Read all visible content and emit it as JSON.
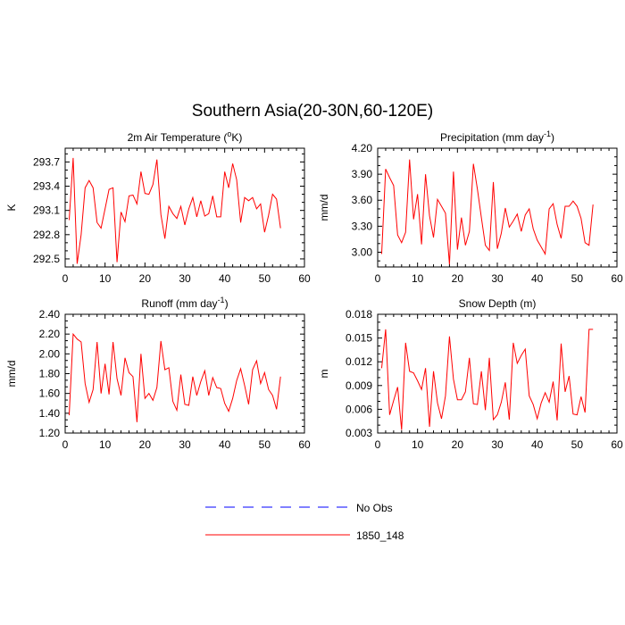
{
  "figure": {
    "title": "Southern Asia(20-30N,60-120E)",
    "line_color": "#ff0000",
    "obs_color": "#0000ff",
    "axis_color": "#000000"
  },
  "legend": {
    "entries": [
      {
        "label": "No Obs",
        "style": "dashed",
        "color": "#0000ff"
      },
      {
        "label": "1850_148",
        "style": "solid",
        "color": "#ff0000"
      }
    ]
  },
  "chart_data": [
    {
      "type": "line",
      "title_main": "2m Air Temperature (",
      "title_sup": "o",
      "title_tail": "K)",
      "xlabel": "",
      "ylabel": "K",
      "xlim": [
        0,
        60
      ],
      "ylim": [
        292.4,
        293.87
      ],
      "xticks": [
        0,
        10,
        20,
        30,
        40,
        50,
        60
      ],
      "yticks": [
        292.5,
        292.8,
        293.1,
        293.4,
        293.7
      ],
      "ytick_labels": [
        "292.5",
        "292.8",
        "293.1",
        "293.4",
        "293.7"
      ],
      "series": [
        {
          "x": [
            1,
            2,
            3,
            4,
            5,
            6,
            7,
            8,
            9,
            10,
            11,
            12,
            13,
            14,
            15,
            16,
            17,
            18,
            19,
            20,
            21,
            22,
            23,
            24,
            25,
            26,
            27,
            28,
            29,
            30,
            31,
            32,
            33,
            34,
            35,
            36,
            37,
            38,
            39,
            40,
            41,
            42,
            43,
            44,
            45,
            46,
            47,
            48,
            49,
            50,
            51,
            52,
            53,
            54
          ],
          "values": [
            292.98,
            293.75,
            292.44,
            292.8,
            293.38,
            293.47,
            293.38,
            292.95,
            292.88,
            293.12,
            293.36,
            293.38,
            292.46,
            293.08,
            292.96,
            293.28,
            293.29,
            293.18,
            293.58,
            293.31,
            293.3,
            293.42,
            293.73,
            293.05,
            292.75,
            293.15,
            293.06,
            293.0,
            293.15,
            292.92,
            293.12,
            293.26,
            293.02,
            293.22,
            293.03,
            293.06,
            293.28,
            293.02,
            293.02,
            293.58,
            293.38,
            293.68,
            293.48,
            292.95,
            293.26,
            293.22,
            293.26,
            293.12,
            293.18,
            292.83,
            293.04,
            293.3,
            293.24,
            292.88
          ]
        }
      ]
    },
    {
      "type": "line",
      "title_main": "Precipitation (mm day",
      "title_sup": "-1",
      "title_tail": ")",
      "xlabel": "",
      "ylabel": "mm/d",
      "xlim": [
        0,
        60
      ],
      "ylim": [
        2.83,
        4.2
      ],
      "xticks": [
        0,
        10,
        20,
        30,
        40,
        50,
        60
      ],
      "yticks": [
        3.0,
        3.3,
        3.6,
        3.9,
        4.2
      ],
      "ytick_labels": [
        "3.00",
        "3.30",
        "3.60",
        "3.90",
        "4.20"
      ],
      "series": [
        {
          "x": [
            1,
            2,
            3,
            4,
            5,
            6,
            7,
            8,
            9,
            10,
            11,
            12,
            13,
            14,
            15,
            16,
            17,
            18,
            19,
            20,
            21,
            22,
            23,
            24,
            25,
            26,
            27,
            28,
            29,
            30,
            31,
            32,
            33,
            34,
            35,
            36,
            37,
            38,
            39,
            40,
            41,
            42,
            43,
            44,
            45,
            46,
            47,
            48,
            49,
            50,
            51,
            52,
            53,
            54
          ],
          "values": [
            2.98,
            3.96,
            3.86,
            3.77,
            3.2,
            3.11,
            3.23,
            4.07,
            3.38,
            3.67,
            3.09,
            3.9,
            3.42,
            3.17,
            3.61,
            3.53,
            3.45,
            2.86,
            3.93,
            3.03,
            3.4,
            3.08,
            3.24,
            4.02,
            3.73,
            3.4,
            3.08,
            3.02,
            3.81,
            3.04,
            3.22,
            3.51,
            3.29,
            3.36,
            3.44,
            3.24,
            3.43,
            3.5,
            3.27,
            3.14,
            3.06,
            2.98,
            3.5,
            3.56,
            3.32,
            3.16,
            3.53,
            3.53,
            3.59,
            3.53,
            3.39,
            3.11,
            3.08,
            3.55
          ]
        }
      ]
    },
    {
      "type": "line",
      "title_main": "Runoff (mm day",
      "title_sup": "-1",
      "title_tail": ")",
      "xlabel": "",
      "ylabel": "mm/d",
      "xlim": [
        0,
        60
      ],
      "ylim": [
        1.2,
        2.4
      ],
      "xticks": [
        0,
        10,
        20,
        30,
        40,
        50,
        60
      ],
      "yticks": [
        1.2,
        1.4,
        1.6,
        1.8,
        2.0,
        2.2,
        2.4
      ],
      "ytick_labels": [
        "1.20",
        "1.40",
        "1.60",
        "1.80",
        "2.00",
        "2.20",
        "2.40"
      ],
      "series": [
        {
          "x": [
            1,
            2,
            3,
            4,
            5,
            6,
            7,
            8,
            9,
            10,
            11,
            12,
            13,
            14,
            15,
            16,
            17,
            18,
            19,
            20,
            21,
            22,
            23,
            24,
            25,
            26,
            27,
            28,
            29,
            30,
            31,
            32,
            33,
            34,
            35,
            36,
            37,
            38,
            39,
            40,
            41,
            42,
            43,
            44,
            45,
            46,
            47,
            48,
            49,
            50,
            51,
            52,
            53,
            54
          ],
          "values": [
            1.38,
            2.2,
            2.15,
            2.12,
            1.7,
            1.51,
            1.64,
            2.12,
            1.6,
            1.9,
            1.59,
            2.12,
            1.75,
            1.58,
            1.96,
            1.81,
            1.77,
            1.31,
            2.0,
            1.55,
            1.6,
            1.53,
            1.66,
            2.13,
            1.84,
            1.86,
            1.52,
            1.43,
            1.79,
            1.49,
            1.48,
            1.77,
            1.58,
            1.72,
            1.83,
            1.58,
            1.76,
            1.66,
            1.65,
            1.5,
            1.42,
            1.55,
            1.73,
            1.85,
            1.68,
            1.49,
            1.84,
            1.93,
            1.7,
            1.81,
            1.64,
            1.58,
            1.44,
            1.77
          ]
        }
      ]
    },
    {
      "type": "line",
      "title_main": "Snow Depth (m)",
      "title_sup": "",
      "title_tail": "",
      "xlabel": "",
      "ylabel": "m",
      "xlim": [
        0,
        60
      ],
      "ylim": [
        0.003,
        0.018
      ],
      "xticks": [
        0,
        10,
        20,
        30,
        40,
        50,
        60
      ],
      "yticks": [
        0.003,
        0.006,
        0.009,
        0.012,
        0.015,
        0.018
      ],
      "ytick_labels": [
        "0.003",
        "0.006",
        "0.009",
        "0.012",
        "0.015",
        "0.018"
      ],
      "series": [
        {
          "x": [
            1,
            2,
            3,
            4,
            5,
            6,
            7,
            8,
            9,
            10,
            11,
            12,
            13,
            14,
            15,
            16,
            17,
            18,
            19,
            20,
            21,
            22,
            23,
            24,
            25,
            26,
            27,
            28,
            29,
            30,
            31,
            32,
            33,
            34,
            35,
            36,
            37,
            38,
            39,
            40,
            41,
            42,
            43,
            44,
            45,
            46,
            47,
            48,
            49,
            50,
            51,
            52,
            53,
            54
          ],
          "values": [
            0.0112,
            0.0161,
            0.0053,
            0.0071,
            0.0088,
            0.0034,
            0.0144,
            0.0108,
            0.0106,
            0.0096,
            0.0085,
            0.0112,
            0.0038,
            0.0108,
            0.0068,
            0.0048,
            0.0077,
            0.0152,
            0.0098,
            0.0072,
            0.0072,
            0.0082,
            0.0125,
            0.0067,
            0.0066,
            0.0108,
            0.0059,
            0.0125,
            0.0047,
            0.0053,
            0.0069,
            0.0094,
            0.0047,
            0.0144,
            0.0118,
            0.0128,
            0.0136,
            0.0077,
            0.0066,
            0.0048,
            0.0068,
            0.0081,
            0.0069,
            0.0095,
            0.0046,
            0.0143,
            0.0082,
            0.0102,
            0.0054,
            0.0053,
            0.0076,
            0.0056,
            0.0161,
            0.0161
          ]
        }
      ]
    }
  ]
}
